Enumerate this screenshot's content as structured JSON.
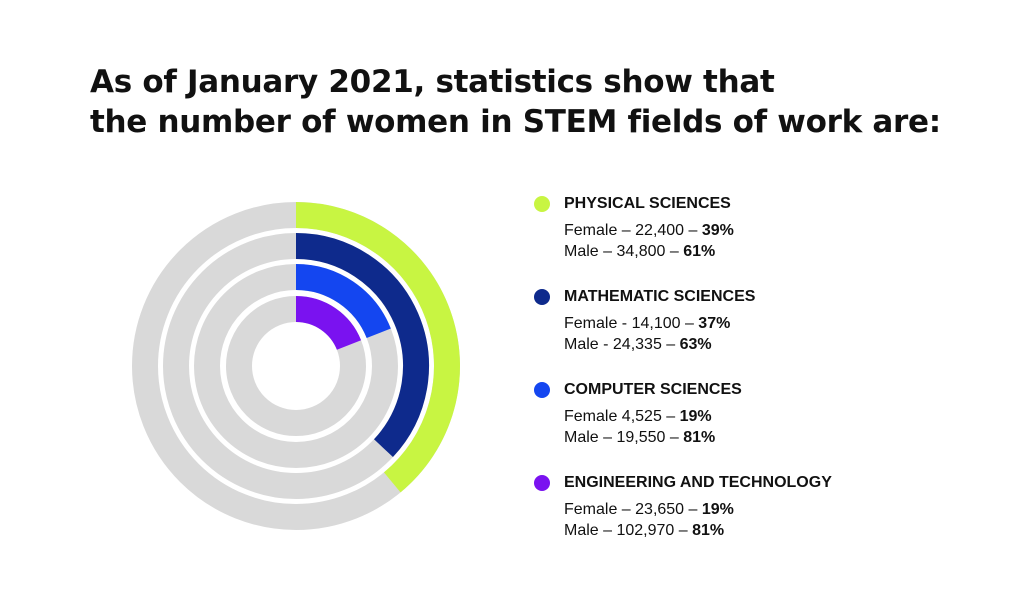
{
  "title": {
    "line1": "As of January 2021, statistics show that",
    "line2": "the number of women in STEM fields of work are:"
  },
  "chart_data": {
    "type": "radial-bar",
    "track_color": "#d9d9d9",
    "series": [
      {
        "name": "PHYSICAL SCIENCES",
        "color": "#c8f542",
        "female_label": "Female – 22,400 – ",
        "female_pct_label": "39%",
        "male_label": "Male – 34,800 – ",
        "male_pct_label": "61%",
        "female": 22400,
        "male": 34800,
        "female_pct": 39,
        "male_pct": 61
      },
      {
        "name": "MATHEMATIC SCIENCES",
        "color": "#0e2a8c",
        "female_label": "Female - 14,100 – ",
        "female_pct_label": "37%",
        "male_label": "Male - 24,335 – ",
        "male_pct_label": "63%",
        "female": 14100,
        "male": 24335,
        "female_pct": 37,
        "male_pct": 63
      },
      {
        "name": "COMPUTER SCIENCES",
        "color": "#1446f0",
        "female_label": "Female 4,525 – ",
        "female_pct_label": "19%",
        "male_label": "Male – 19,550 – ",
        "male_pct_label": "81%",
        "female": 4525,
        "male": 19550,
        "female_pct": 19,
        "male_pct": 81
      },
      {
        "name": "ENGINEERING AND TECHNOLOGY",
        "color": "#7a12f0",
        "female_label": "Female – 23,650 – ",
        "female_pct_label": "19%",
        "male_label": "Male – 102,970 – ",
        "male_pct_label": "81%",
        "female": 23650,
        "male": 102970,
        "female_pct": 19,
        "male_pct": 81
      }
    ]
  }
}
